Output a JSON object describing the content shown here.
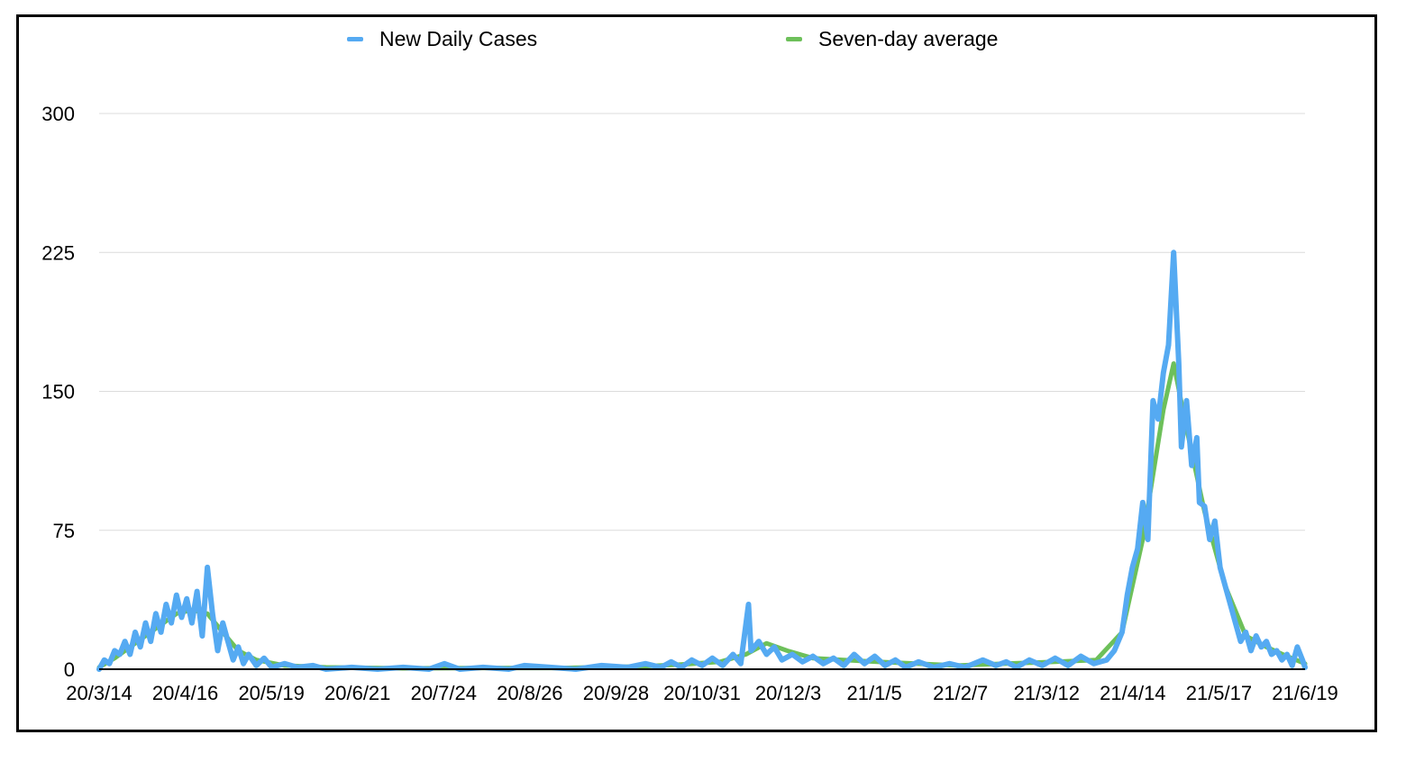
{
  "chart_data": {
    "type": "line",
    "title": "",
    "xlabel": "",
    "ylabel": "",
    "ylim": [
      0,
      300
    ],
    "yticks": [
      "0",
      "75",
      "150",
      "225",
      "300"
    ],
    "xtick_labels": [
      "20/3/14",
      "20/4/16",
      "20/5/19",
      "20/6/21",
      "20/7/24",
      "20/8/26",
      "20/9/28",
      "20/10/31",
      "20/12/3",
      "21/1/5",
      "21/2/7",
      "21/3/12",
      "21/4/14",
      "21/5/17",
      "21/6/19"
    ],
    "grid": true,
    "legend_position": "top-center",
    "x_start": "2020-03-14",
    "x_end": "2021-06-25",
    "series": [
      {
        "name": "New Daily Cases",
        "color": "#55aaf2",
        "points": [
          [
            "2020-03-14",
            0
          ],
          [
            "2020-03-16",
            5
          ],
          [
            "2020-03-18",
            3
          ],
          [
            "2020-03-20",
            10
          ],
          [
            "2020-03-22",
            8
          ],
          [
            "2020-03-24",
            15
          ],
          [
            "2020-03-26",
            8
          ],
          [
            "2020-03-28",
            20
          ],
          [
            "2020-03-30",
            12
          ],
          [
            "2020-04-01",
            25
          ],
          [
            "2020-04-03",
            15
          ],
          [
            "2020-04-05",
            30
          ],
          [
            "2020-04-07",
            20
          ],
          [
            "2020-04-09",
            35
          ],
          [
            "2020-04-11",
            25
          ],
          [
            "2020-04-13",
            40
          ],
          [
            "2020-04-15",
            28
          ],
          [
            "2020-04-17",
            38
          ],
          [
            "2020-04-19",
            25
          ],
          [
            "2020-04-21",
            42
          ],
          [
            "2020-04-23",
            18
          ],
          [
            "2020-04-25",
            55
          ],
          [
            "2020-04-27",
            30
          ],
          [
            "2020-04-29",
            10
          ],
          [
            "2020-05-01",
            25
          ],
          [
            "2020-05-03",
            15
          ],
          [
            "2020-05-05",
            5
          ],
          [
            "2020-05-07",
            12
          ],
          [
            "2020-05-09",
            3
          ],
          [
            "2020-05-11",
            8
          ],
          [
            "2020-05-14",
            2
          ],
          [
            "2020-05-17",
            6
          ],
          [
            "2020-05-20",
            1
          ],
          [
            "2020-05-25",
            3
          ],
          [
            "2020-05-30",
            1
          ],
          [
            "2020-06-05",
            2
          ],
          [
            "2020-06-10",
            0
          ],
          [
            "2020-06-20",
            1
          ],
          [
            "2020-06-30",
            0
          ],
          [
            "2020-07-10",
            1
          ],
          [
            "2020-07-20",
            0
          ],
          [
            "2020-07-26",
            3
          ],
          [
            "2020-08-01",
            0
          ],
          [
            "2020-08-10",
            1
          ],
          [
            "2020-08-20",
            0
          ],
          [
            "2020-08-26",
            2
          ],
          [
            "2020-09-05",
            1
          ],
          [
            "2020-09-15",
            0
          ],
          [
            "2020-09-25",
            2
          ],
          [
            "2020-10-05",
            1
          ],
          [
            "2020-10-12",
            3
          ],
          [
            "2020-10-18",
            1
          ],
          [
            "2020-10-22",
            4
          ],
          [
            "2020-10-26",
            1
          ],
          [
            "2020-10-30",
            5
          ],
          [
            "2020-11-03",
            2
          ],
          [
            "2020-11-07",
            6
          ],
          [
            "2020-11-11",
            2
          ],
          [
            "2020-11-15",
            8
          ],
          [
            "2020-11-18",
            3
          ],
          [
            "2020-11-21",
            35
          ],
          [
            "2020-11-22",
            10
          ],
          [
            "2020-11-25",
            15
          ],
          [
            "2020-11-28",
            8
          ],
          [
            "2020-12-01",
            12
          ],
          [
            "2020-12-04",
            5
          ],
          [
            "2020-12-08",
            8
          ],
          [
            "2020-12-12",
            4
          ],
          [
            "2020-12-16",
            7
          ],
          [
            "2020-12-20",
            3
          ],
          [
            "2020-12-24",
            6
          ],
          [
            "2020-12-28",
            2
          ],
          [
            "2021-01-01",
            8
          ],
          [
            "2021-01-05",
            3
          ],
          [
            "2021-01-09",
            7
          ],
          [
            "2021-01-13",
            2
          ],
          [
            "2021-01-17",
            5
          ],
          [
            "2021-01-21",
            1
          ],
          [
            "2021-01-26",
            4
          ],
          [
            "2021-02-01",
            1
          ],
          [
            "2021-02-07",
            3
          ],
          [
            "2021-02-13",
            1
          ],
          [
            "2021-02-20",
            5
          ],
          [
            "2021-02-25",
            2
          ],
          [
            "2021-03-01",
            4
          ],
          [
            "2021-03-05",
            1
          ],
          [
            "2021-03-10",
            5
          ],
          [
            "2021-03-15",
            2
          ],
          [
            "2021-03-20",
            6
          ],
          [
            "2021-03-25",
            2
          ],
          [
            "2021-03-30",
            7
          ],
          [
            "2021-04-04",
            3
          ],
          [
            "2021-04-09",
            5
          ],
          [
            "2021-04-12",
            10
          ],
          [
            "2021-04-15",
            20
          ],
          [
            "2021-04-17",
            40
          ],
          [
            "2021-04-19",
            55
          ],
          [
            "2021-04-21",
            65
          ],
          [
            "2021-04-23",
            90
          ],
          [
            "2021-04-25",
            70
          ],
          [
            "2021-04-27",
            145
          ],
          [
            "2021-04-29",
            135
          ],
          [
            "2021-05-01",
            160
          ],
          [
            "2021-05-03",
            175
          ],
          [
            "2021-05-05",
            225
          ],
          [
            "2021-05-07",
            165
          ],
          [
            "2021-05-08",
            120
          ],
          [
            "2021-05-10",
            145
          ],
          [
            "2021-05-12",
            110
          ],
          [
            "2021-05-14",
            125
          ],
          [
            "2021-05-15",
            90
          ],
          [
            "2021-05-17",
            88
          ],
          [
            "2021-05-19",
            70
          ],
          [
            "2021-05-21",
            80
          ],
          [
            "2021-05-23",
            55
          ],
          [
            "2021-05-25",
            45
          ],
          [
            "2021-05-27",
            35
          ],
          [
            "2021-05-29",
            25
          ],
          [
            "2021-05-31",
            15
          ],
          [
            "2021-06-02",
            20
          ],
          [
            "2021-06-04",
            10
          ],
          [
            "2021-06-06",
            18
          ],
          [
            "2021-06-08",
            12
          ],
          [
            "2021-06-10",
            15
          ],
          [
            "2021-06-12",
            8
          ],
          [
            "2021-06-14",
            10
          ],
          [
            "2021-06-16",
            5
          ],
          [
            "2021-06-18",
            8
          ],
          [
            "2021-06-20",
            2
          ],
          [
            "2021-06-22",
            12
          ],
          [
            "2021-06-24",
            5
          ],
          [
            "2021-06-25",
            1
          ]
        ]
      },
      {
        "name": "Seven-day average",
        "color": "#6dc05a",
        "points": [
          [
            "2020-03-14",
            1
          ],
          [
            "2020-03-20",
            6
          ],
          [
            "2020-03-26",
            12
          ],
          [
            "2020-04-01",
            18
          ],
          [
            "2020-04-07",
            24
          ],
          [
            "2020-04-13",
            30
          ],
          [
            "2020-04-19",
            32
          ],
          [
            "2020-04-25",
            30
          ],
          [
            "2020-05-01",
            20
          ],
          [
            "2020-05-07",
            10
          ],
          [
            "2020-05-14",
            5
          ],
          [
            "2020-05-25",
            2
          ],
          [
            "2020-06-10",
            1
          ],
          [
            "2020-07-10",
            0.5
          ],
          [
            "2020-08-10",
            0.7
          ],
          [
            "2020-09-10",
            0.7
          ],
          [
            "2020-10-10",
            1.5
          ],
          [
            "2020-10-25",
            2.5
          ],
          [
            "2020-11-10",
            4
          ],
          [
            "2020-11-20",
            8
          ],
          [
            "2020-11-28",
            14
          ],
          [
            "2020-12-06",
            10
          ],
          [
            "2020-12-16",
            6
          ],
          [
            "2020-12-28",
            5
          ],
          [
            "2021-01-10",
            4
          ],
          [
            "2021-01-25",
            3
          ],
          [
            "2021-02-10",
            2
          ],
          [
            "2021-03-01",
            3
          ],
          [
            "2021-03-20",
            4
          ],
          [
            "2021-04-05",
            5
          ],
          [
            "2021-04-15",
            20
          ],
          [
            "2021-04-23",
            70
          ],
          [
            "2021-05-01",
            140
          ],
          [
            "2021-05-05",
            165
          ],
          [
            "2021-05-10",
            130
          ],
          [
            "2021-05-17",
            85
          ],
          [
            "2021-05-25",
            45
          ],
          [
            "2021-06-02",
            18
          ],
          [
            "2021-06-10",
            12
          ],
          [
            "2021-06-18",
            7
          ],
          [
            "2021-06-25",
            3
          ]
        ]
      }
    ]
  }
}
